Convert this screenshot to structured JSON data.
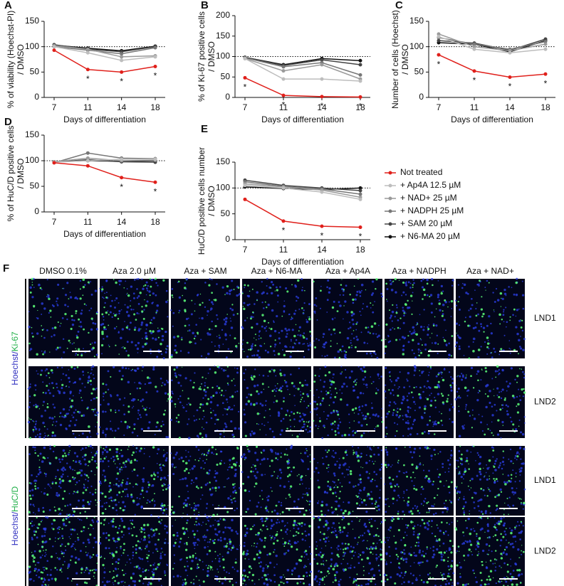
{
  "chart_data": [
    {
      "type": "line",
      "panel": "A",
      "ylabel": [
        "% of viability (Hoechst-PI)",
        "/ DMSO"
      ],
      "xlabel": "Days of differentiation",
      "categories": [
        "7",
        "11",
        "14",
        "18"
      ],
      "ylim": [
        0,
        150
      ],
      "yticks": [
        0,
        50,
        100,
        150
      ],
      "reference_line": 100,
      "series": [
        {
          "color": "#e0201b",
          "values": [
            93,
            55,
            50,
            61
          ]
        },
        {
          "color": "#bdbdbd",
          "values": [
            100,
            88,
            73,
            80
          ]
        },
        {
          "color": "#9a9a9a",
          "values": [
            102,
            95,
            80,
            82
          ]
        },
        {
          "color": "#777777",
          "values": [
            100,
            93,
            86,
            98
          ]
        },
        {
          "color": "#444444",
          "values": [
            104,
            95,
            90,
            100
          ]
        },
        {
          "color": "#111111",
          "values": [
            103,
            97,
            92,
            101
          ]
        }
      ],
      "annotations": [
        {
          "x": "11",
          "text": "*"
        },
        {
          "x": "14",
          "text": "*"
        },
        {
          "x": "18",
          "text": "*"
        }
      ]
    },
    {
      "type": "line",
      "panel": "B",
      "ylabel": [
        "% of Ki-67 positive cells",
        "/ DMSO"
      ],
      "xlabel": "Days of differentiation",
      "categories": [
        "7",
        "11",
        "14",
        "18"
      ],
      "ylim": [
        0,
        200
      ],
      "yticks": [
        0,
        50,
        100,
        150,
        200
      ],
      "reference_line": 100,
      "series": [
        {
          "color": "#e0201b",
          "values": [
            48,
            5,
            2,
            1
          ]
        },
        {
          "color": "#bdbdbd",
          "values": [
            95,
            45,
            45,
            40
          ]
        },
        {
          "color": "#9a9a9a",
          "values": [
            95,
            65,
            80,
            45
          ]
        },
        {
          "color": "#777777",
          "values": [
            97,
            75,
            85,
            55
          ]
        },
        {
          "color": "#444444",
          "values": [
            98,
            78,
            92,
            80
          ]
        },
        {
          "color": "#111111",
          "values": [
            98,
            80,
            95,
            90
          ]
        }
      ],
      "annotations": [
        {
          "x": "7",
          "text": "*"
        },
        {
          "x": "11",
          "text": "*"
        },
        {
          "x": "14",
          "text": "*"
        },
        {
          "x": "18",
          "text": "*"
        }
      ]
    },
    {
      "type": "line",
      "panel": "C",
      "ylabel": [
        "Number of cells (Hoechst)",
        "/ DMSO"
      ],
      "xlabel": "Days of differentiation",
      "categories": [
        "7",
        "11",
        "14",
        "18"
      ],
      "ylim": [
        0,
        150
      ],
      "yticks": [
        0,
        50,
        100,
        150
      ],
      "reference_line": 100,
      "series": [
        {
          "color": "#e0201b",
          "values": [
            84,
            52,
            40,
            46
          ]
        },
        {
          "color": "#bdbdbd",
          "values": [
            120,
            95,
            88,
            95
          ]
        },
        {
          "color": "#9a9a9a",
          "values": [
            125,
            100,
            92,
            105
          ]
        },
        {
          "color": "#777777",
          "values": [
            118,
            105,
            95,
            110
          ]
        },
        {
          "color": "#444444",
          "values": [
            112,
            107,
            93,
            115
          ]
        },
        {
          "color": "#111111",
          "values": [
            108,
            105,
            90,
            112
          ]
        }
      ],
      "annotations": [
        {
          "x": "7",
          "text": "*"
        },
        {
          "x": "11",
          "text": "*"
        },
        {
          "x": "14",
          "text": "*"
        },
        {
          "x": "18",
          "text": "*"
        }
      ]
    },
    {
      "type": "line",
      "panel": "D",
      "ylabel": [
        "% of HuC/D positive cells",
        "/ DMSO"
      ],
      "xlabel": "Days of differentiation",
      "categories": [
        "7",
        "11",
        "14",
        "18"
      ],
      "ylim": [
        0,
        150
      ],
      "yticks": [
        0,
        50,
        100,
        150
      ],
      "reference_line": 100,
      "series": [
        {
          "color": "#e0201b",
          "values": [
            96,
            90,
            67,
            58
          ]
        },
        {
          "color": "#bdbdbd",
          "values": [
            97,
            100,
            103,
            103
          ]
        },
        {
          "color": "#9a9a9a",
          "values": [
            98,
            105,
            100,
            101
          ]
        },
        {
          "color": "#777777",
          "values": [
            96,
            115,
            105,
            104
          ]
        },
        {
          "color": "#444444",
          "values": [
            97,
            102,
            98,
            97
          ]
        },
        {
          "color": "#111111",
          "values": [
            98,
            100,
            99,
            100
          ]
        }
      ],
      "annotations": [
        {
          "x": "14",
          "text": "*"
        },
        {
          "x": "18",
          "text": "*"
        }
      ]
    },
    {
      "type": "line",
      "panel": "E",
      "ylabel": [
        "HuC/D positive cells number",
        "/ DMSO"
      ],
      "xlabel": "Days of differentiation",
      "categories": [
        "7",
        "11",
        "14",
        "18"
      ],
      "ylim": [
        0,
        150
      ],
      "yticks": [
        0,
        50,
        100,
        150
      ],
      "reference_line": 100,
      "series": [
        {
          "name": "Not treated",
          "color": "#e0201b",
          "values": [
            78,
            36,
            26,
            24
          ]
        },
        {
          "name": "+ Ap4A 12.5 µM",
          "color": "#bdbdbd",
          "values": [
            105,
            100,
            92,
            78
          ]
        },
        {
          "name": "+ NAD+ 25 µM",
          "color": "#9a9a9a",
          "values": [
            108,
            102,
            96,
            82
          ]
        },
        {
          "name": "+ NADPH 25 µM",
          "color": "#777777",
          "values": [
            112,
            103,
            98,
            88
          ]
        },
        {
          "name": "+ SAM 20 µM",
          "color": "#444444",
          "values": [
            115,
            105,
            100,
            95
          ]
        },
        {
          "name": "+ N6-MA 20 µM",
          "color": "#111111",
          "values": [
            102,
            99,
            97,
            100
          ]
        }
      ],
      "annotations": [
        {
          "x": "11",
          "text": "*"
        },
        {
          "x": "14",
          "text": "*"
        },
        {
          "x": "18",
          "text": "*"
        }
      ]
    }
  ],
  "panel_f": {
    "label": "F",
    "columns": [
      "DMSO 0.1%",
      "Aza 2.0 µM",
      "Aza + SAM",
      "Aza + N6-MA",
      "Aza + Ap4A",
      "Aza + NADPH",
      "Aza + NAD+"
    ],
    "blocks": [
      {
        "stain": [
          "Hoechst/",
          "Ki-67"
        ],
        "rows": [
          "LND1",
          "LND2"
        ]
      },
      {
        "stain": [
          "Hoechst/",
          "HuC/D"
        ],
        "rows": [
          "LND1",
          "LND2"
        ]
      }
    ]
  }
}
